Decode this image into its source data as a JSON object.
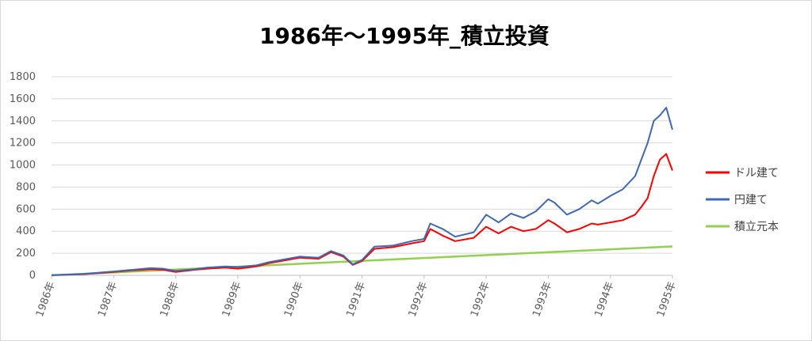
{
  "chart_data": {
    "type": "line",
    "title": "1986年～1995年_積立投資",
    "xlabel": "",
    "ylabel": "",
    "ylim": [
      0,
      1800
    ],
    "y_ticks": [
      0,
      200,
      400,
      600,
      800,
      1000,
      1200,
      1400,
      1600,
      1800
    ],
    "x_tick_labels": [
      "1986年",
      "1987年",
      "1988年",
      "1989年",
      "1990年",
      "1991年",
      "1992年",
      "1992年",
      "1993年",
      "1994年",
      "1995年"
    ],
    "grid": true,
    "legend_position": "right",
    "series": [
      {
        "name": "ドル建て",
        "color": "#ff0000",
        "x": [
          0,
          0.5,
          1.0,
          1.3,
          1.6,
          1.8,
          2.0,
          2.3,
          2.5,
          2.8,
          3.0,
          3.3,
          3.5,
          3.8,
          4.0,
          4.3,
          4.5,
          4.7,
          4.85,
          5.0,
          5.2,
          5.5,
          5.8,
          6.0,
          6.1,
          6.3,
          6.5,
          6.8,
          7.0,
          7.2,
          7.4,
          7.6,
          7.8,
          8.0,
          8.1,
          8.3,
          8.5,
          8.7,
          8.8,
          9.0,
          9.2,
          9.4,
          9.5,
          9.6,
          9.7,
          9.8,
          9.9,
          10.0
        ],
        "y": [
          2,
          10,
          30,
          45,
          55,
          50,
          30,
          50,
          60,
          70,
          60,
          80,
          110,
          140,
          160,
          150,
          210,
          170,
          95,
          130,
          240,
          255,
          290,
          310,
          420,
          360,
          310,
          340,
          440,
          380,
          440,
          400,
          420,
          500,
          470,
          390,
          420,
          470,
          460,
          480,
          500,
          550,
          620,
          700,
          900,
          1050,
          1100,
          950
        ]
      },
      {
        "name": "円建て",
        "color": "#4169b3",
        "x": [
          0,
          0.5,
          1.0,
          1.3,
          1.6,
          1.8,
          2.0,
          2.3,
          2.5,
          2.8,
          3.0,
          3.3,
          3.5,
          3.8,
          4.0,
          4.3,
          4.5,
          4.7,
          4.85,
          5.0,
          5.2,
          5.5,
          5.8,
          6.0,
          6.1,
          6.3,
          6.5,
          6.8,
          7.0,
          7.2,
          7.4,
          7.6,
          7.8,
          8.0,
          8.1,
          8.3,
          8.5,
          8.7,
          8.8,
          9.0,
          9.2,
          9.4,
          9.5,
          9.6,
          9.7,
          9.8,
          9.9,
          10.0
        ],
        "y": [
          2,
          12,
          35,
          50,
          65,
          60,
          40,
          55,
          70,
          80,
          75,
          90,
          120,
          150,
          170,
          160,
          220,
          180,
          100,
          140,
          260,
          270,
          310,
          330,
          470,
          420,
          350,
          390,
          550,
          480,
          560,
          520,
          580,
          690,
          660,
          550,
          600,
          680,
          650,
          720,
          780,
          900,
          1050,
          1200,
          1400,
          1450,
          1520,
          1320
        ]
      },
      {
        "name": "積立元本",
        "color": "#92d050",
        "x": [
          0,
          10.0
        ],
        "y": [
          0,
          262
        ]
      }
    ]
  }
}
